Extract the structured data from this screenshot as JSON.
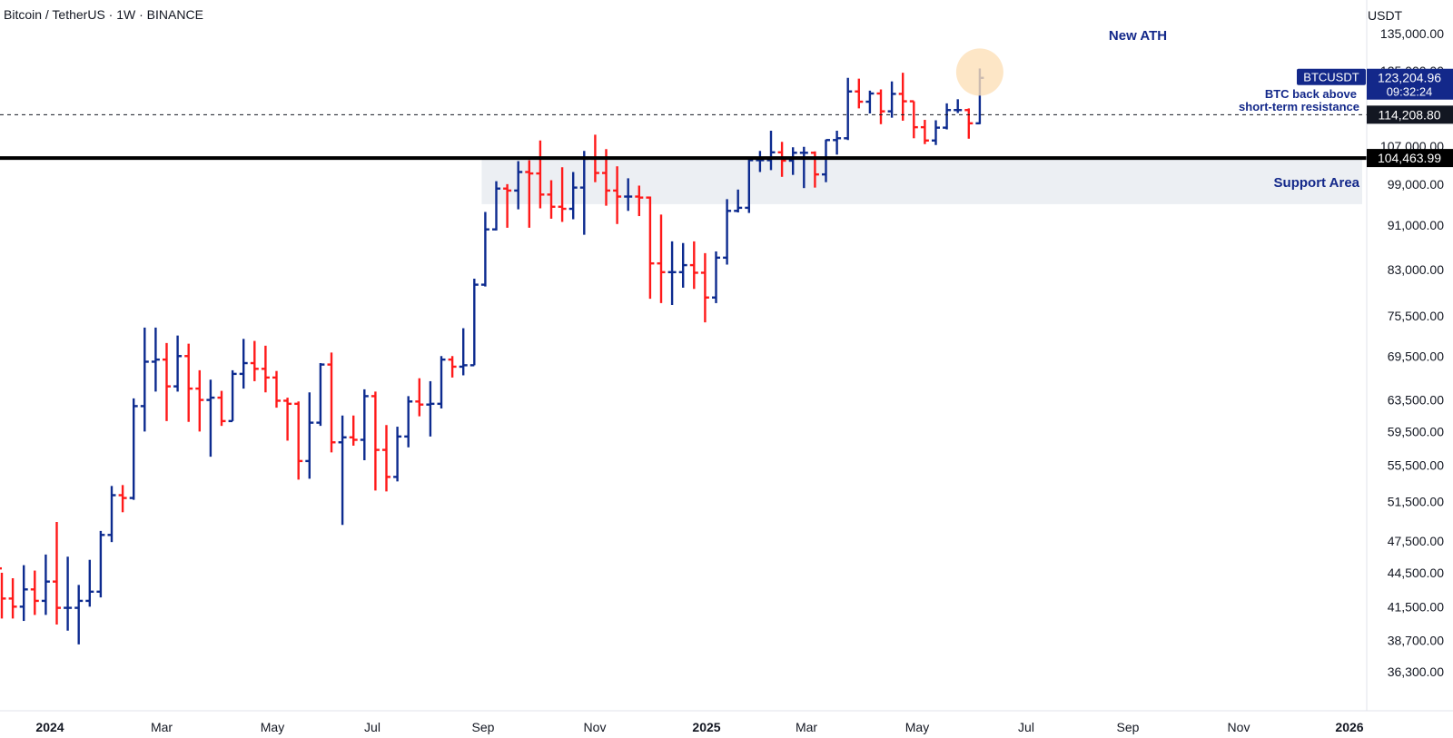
{
  "header": {
    "symbol_title": "Bitcoin / TetherUS · 1W · BINANCE",
    "currency": "USDT"
  },
  "colors": {
    "up": "#0d2b8f",
    "down": "#ff1a1a",
    "annotation": "#13288a",
    "support_fill": "#eceff3",
    "ath_circle": "#fde0b8"
  },
  "chart_data": {
    "type": "ohlc",
    "title": "Bitcoin / TetherUS · 1W · BINANCE",
    "x_labels": [
      "2024",
      "Mar",
      "May",
      "Jul",
      "Sep",
      "Nov",
      "2025",
      "Mar",
      "May",
      "Jul",
      "Sep",
      "Nov",
      "2026"
    ],
    "y_scale": "log",
    "y_ticks": [
      "36,300.00",
      "38,700.00",
      "41,500.00",
      "44,500.00",
      "47,500.00",
      "51,500.00",
      "55,500.00",
      "59,500.00",
      "63,500.00",
      "69,500.00",
      "75,500.00",
      "83,000.00",
      "91,000.00",
      "99,000.00",
      "107,000.00",
      "125,000.00",
      "135,000.00"
    ],
    "ylim": [
      34000,
      140000
    ],
    "series_name": "BTCUSDT",
    "last_price": {
      "value": "123,204.96",
      "countdown": "09:32:24"
    },
    "levels": [
      {
        "label": "114,208.80",
        "price": 114208.8,
        "style": "dashed"
      },
      {
        "label": "104,463.99",
        "price": 104463.99,
        "style": "solid"
      }
    ],
    "support_area": {
      "label": "Support Area",
      "low": 95000,
      "high": 104463.99,
      "from_bar": 44
    },
    "annotations": [
      {
        "text": "New ATH"
      },
      {
        "text": "BTC back above"
      },
      {
        "text": "short-term resistance"
      }
    ],
    "bars": [
      [
        44900,
        44500,
        40500,
        42200
      ],
      [
        42200,
        44000,
        40500,
        41500
      ],
      [
        41500,
        45200,
        40300,
        43000
      ],
      [
        43000,
        44700,
        40800,
        42000
      ],
      [
        42000,
        46200,
        40800,
        43700
      ],
      [
        43700,
        49400,
        40000,
        41400
      ],
      [
        41400,
        46000,
        39500,
        41400
      ],
      [
        41400,
        43400,
        38400,
        42000
      ],
      [
        42000,
        45700,
        41500,
        42800
      ],
      [
        42800,
        48500,
        42300,
        48100
      ],
      [
        48100,
        53200,
        47400,
        52200
      ],
      [
        52200,
        53300,
        50400,
        51900
      ],
      [
        51900,
        63700,
        51700,
        62700
      ],
      [
        62700,
        73700,
        59500,
        68700
      ],
      [
        68700,
        73700,
        64600,
        69000
      ],
      [
        69000,
        71400,
        60800,
        65300
      ],
      [
        65300,
        72500,
        64600,
        69500
      ],
      [
        69500,
        71300,
        60700,
        65000
      ],
      [
        65000,
        67500,
        59500,
        63500
      ],
      [
        63500,
        66200,
        56500,
        63800
      ],
      [
        63800,
        64700,
        60200,
        60800
      ],
      [
        60800,
        67500,
        60800,
        67000
      ],
      [
        67000,
        72000,
        65000,
        68500
      ],
      [
        68500,
        71700,
        66000,
        67700
      ],
      [
        67700,
        71000,
        64500,
        66500
      ],
      [
        66500,
        67400,
        62500,
        63400
      ],
      [
        63400,
        63800,
        58400,
        63000
      ],
      [
        63000,
        63300,
        53900,
        56000
      ],
      [
        56000,
        64500,
        54000,
        60600
      ],
      [
        60600,
        68500,
        60200,
        68300
      ],
      [
        68300,
        70000,
        57000,
        58200
      ],
      [
        58200,
        61500,
        49100,
        58800
      ],
      [
        58800,
        61500,
        57800,
        58500
      ],
      [
        58500,
        64900,
        56100,
        64000
      ],
      [
        64000,
        64600,
        52700,
        57300
      ],
      [
        57300,
        60300,
        52600,
        54200
      ],
      [
        54200,
        60100,
        53700,
        58900
      ],
      [
        58900,
        64000,
        57600,
        63300
      ],
      [
        63300,
        66400,
        61400,
        62900
      ],
      [
        62900,
        66000,
        58900,
        63000
      ],
      [
        63000,
        69500,
        62400,
        69000
      ],
      [
        69000,
        69500,
        66500,
        68000
      ],
      [
        68000,
        73600,
        66800,
        68200
      ],
      [
        68200,
        81500,
        68200,
        80500
      ],
      [
        80500,
        93500,
        80200,
        90200
      ],
      [
        90200,
        99600,
        90000,
        98100
      ],
      [
        98100,
        99000,
        90500,
        97700
      ],
      [
        97700,
        103800,
        94000,
        101500
      ],
      [
        101500,
        104000,
        90500,
        101200
      ],
      [
        101200,
        108300,
        94200,
        96900
      ],
      [
        96900,
        99800,
        92200,
        94500
      ],
      [
        94500,
        102500,
        91600,
        94100
      ],
      [
        94100,
        101500,
        92100,
        98300
      ],
      [
        98300,
        106000,
        89200,
        104300
      ],
      [
        104300,
        109600,
        99400,
        101300
      ],
      [
        101300,
        106400,
        94700,
        97700
      ],
      [
        97700,
        102700,
        91200,
        96500
      ],
      [
        96500,
        100200,
        93700,
        96500
      ],
      [
        96500,
        98700,
        92700,
        96300
      ],
      [
        96300,
        96500,
        78200,
        84100
      ],
      [
        84100,
        93000,
        77500,
        82600
      ],
      [
        82600,
        88000,
        77200,
        82600
      ],
      [
        82600,
        87700,
        80000,
        83800
      ],
      [
        83800,
        88000,
        79800,
        82500
      ],
      [
        82500,
        85900,
        74500,
        78400
      ],
      [
        78400,
        86200,
        77500,
        85100
      ],
      [
        85100,
        96000,
        83900,
        93700
      ],
      [
        93700,
        97900,
        93400,
        94300
      ],
      [
        94300,
        104400,
        93300,
        104000
      ],
      [
        104000,
        106000,
        101500,
        104000
      ],
      [
        104000,
        110500,
        101900,
        105700
      ],
      [
        105700,
        108000,
        100500,
        103900
      ],
      [
        103900,
        106800,
        100900,
        105600
      ],
      [
        105600,
        106900,
        98200,
        105600
      ],
      [
        105600,
        105900,
        98300,
        101000
      ],
      [
        101000,
        108500,
        99400,
        108400
      ],
      [
        108400,
        110500,
        105200,
        108800
      ],
      [
        108800,
        123200,
        108400,
        119800
      ],
      [
        119800,
        123000,
        115700,
        117300
      ],
      [
        117300,
        120000,
        114500,
        119300
      ],
      [
        119300,
        120300,
        112000,
        115000
      ],
      [
        115000,
        122300,
        113500,
        119200
      ],
      [
        119200,
        124500,
        112800,
        117400
      ],
      [
        117400,
        117400,
        108800,
        111300
      ],
      [
        111300,
        113000,
        107500,
        108300
      ],
      [
        108300,
        112900,
        107300,
        111200
      ],
      [
        111200,
        116900,
        110800,
        115300
      ],
      [
        115300,
        117900,
        114600,
        115300
      ],
      [
        115300,
        115700,
        108700,
        112200
      ],
      [
        112200,
        125600,
        112000,
        123200
      ]
    ]
  }
}
